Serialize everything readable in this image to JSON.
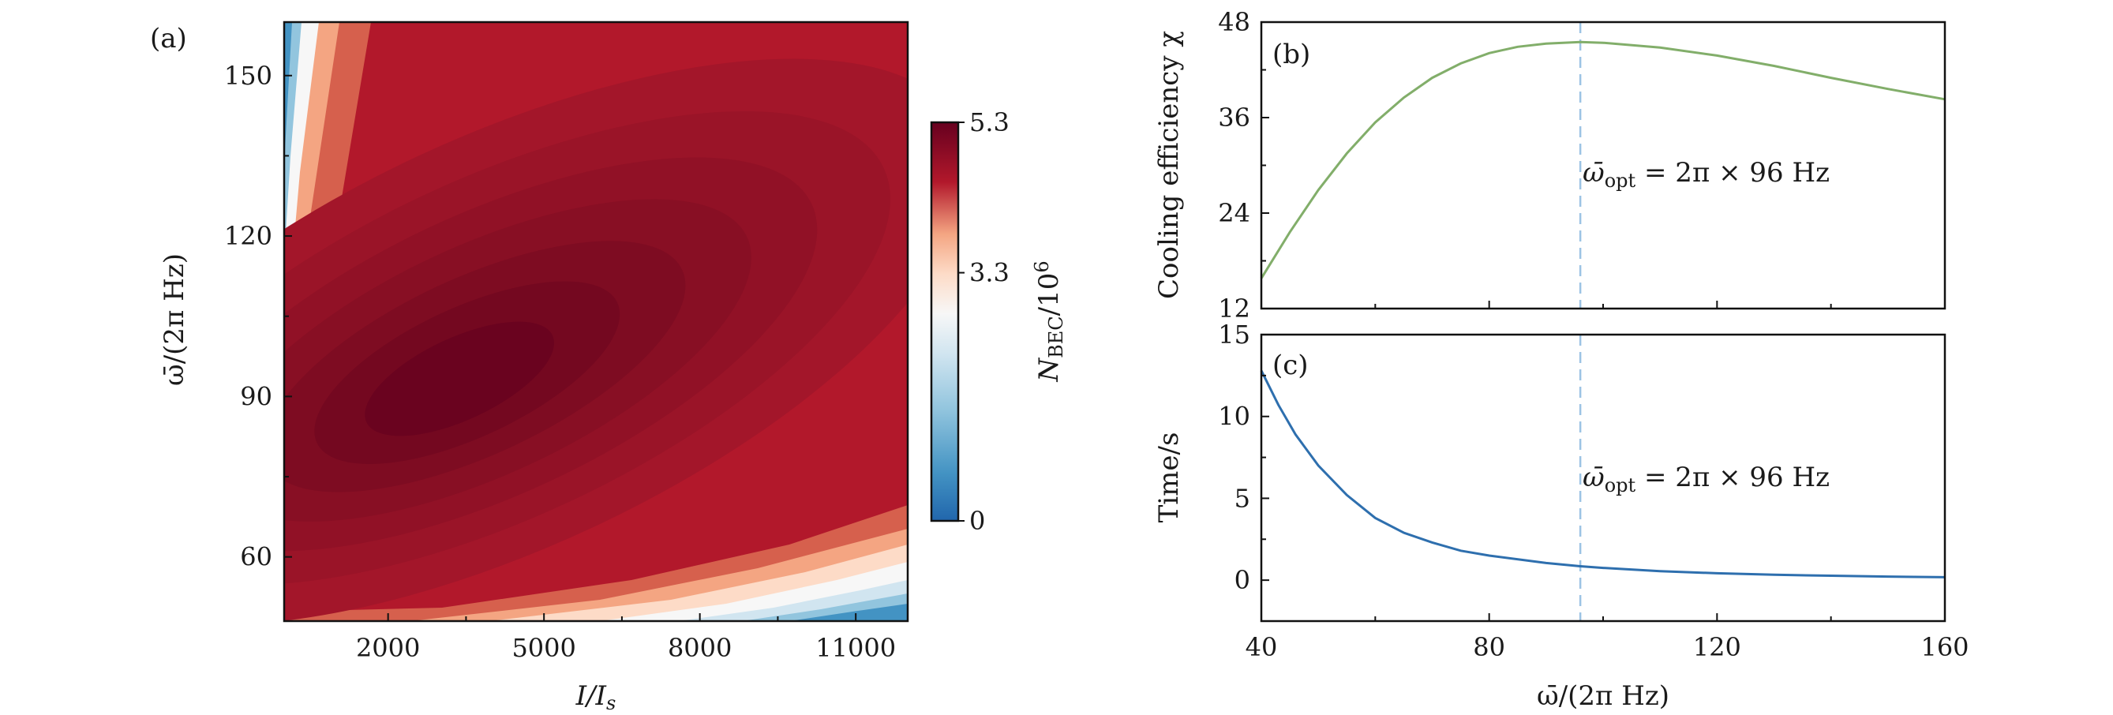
{
  "colors": {
    "heat_dark": "#67001f",
    "heat_red": "#b2182b",
    "heat_light_red": "#d6604d",
    "heat_peach": "#f4a582",
    "heat_pale": "#fddbc7",
    "heat_white": "#f7f7f7",
    "heat_pale_blue": "#d1e5f0",
    "heat_light_blue": "#92c5de",
    "heat_blue": "#4393c3",
    "heat_dark_blue": "#2166ac",
    "line_green": "#82ae6a",
    "line_blue": "#2e6fae",
    "dashed_line": "#9cc3e4"
  },
  "chart_data": [
    {
      "panel": "(a)",
      "type": "heatmap",
      "xlabel": "I/I",
      "xlabel_sub": "s",
      "ylabel": "ω̄/(2π Hz)",
      "xlim": [
        0,
        12000
      ],
      "ylim": [
        48,
        160
      ],
      "xticks": [
        2000,
        5000,
        8000,
        11000
      ],
      "xtick_labels": [
        "2000",
        "5000",
        "8000",
        "11000"
      ],
      "yticks": [
        60,
        90,
        120,
        150
      ],
      "ytick_labels": [
        "60",
        "90",
        "120",
        "150"
      ],
      "peak": {
        "x": 2800,
        "y": 92,
        "value": 5.3
      },
      "colorbar": {
        "label": "N",
        "label_sub": "BEC",
        "label_suffix": "/10",
        "label_sup": "6",
        "min": 0,
        "max": 5.3,
        "ticks": [
          0,
          3.3,
          5.3
        ],
        "tick_labels": [
          "0",
          "3.3",
          "5.3"
        ]
      }
    },
    {
      "panel": "(b)",
      "type": "line",
      "ylabel": "Cooling efficiency χ",
      "xlim": [
        40,
        160
      ],
      "ylim": [
        12,
        48
      ],
      "yticks": [
        12,
        24,
        36,
        48
      ],
      "ytick_labels": [
        "12",
        "24",
        "36",
        "48"
      ],
      "x": [
        40,
        45,
        50,
        55,
        60,
        65,
        70,
        75,
        80,
        85,
        90,
        96,
        100,
        110,
        120,
        130,
        140,
        150,
        160
      ],
      "series": [
        {
          "name": "Cooling efficiency",
          "values": [
            15.8,
            21.6,
            26.9,
            31.5,
            35.4,
            38.5,
            41.0,
            42.8,
            44.1,
            44.9,
            45.3,
            45.5,
            45.4,
            44.8,
            43.8,
            42.5,
            41.0,
            39.6,
            38.3
          ]
        }
      ],
      "vline_x": 96,
      "annotation": "ω̄",
      "annotation_sub": "opt",
      "annotation_rest": " = 2π × 96 Hz"
    },
    {
      "panel": "(c)",
      "type": "line",
      "ylabel": "Time/s",
      "xlabel": "ω̄/(2π Hz)",
      "xlim": [
        40,
        160
      ],
      "ylim": [
        -2.5,
        15
      ],
      "xticks": [
        40,
        80,
        120,
        160
      ],
      "xtick_labels": [
        "40",
        "80",
        "120",
        "160"
      ],
      "yticks": [
        0,
        5,
        10,
        15
      ],
      "ytick_labels": [
        "0",
        "5",
        "10",
        "15"
      ],
      "x": [
        40,
        43,
        46,
        50,
        55,
        60,
        65,
        70,
        75,
        80,
        90,
        96,
        100,
        110,
        120,
        130,
        140,
        150,
        160
      ],
      "series": [
        {
          "name": "Time",
          "values": [
            12.8,
            10.7,
            8.9,
            7.0,
            5.2,
            3.8,
            2.9,
            2.3,
            1.8,
            1.5,
            1.05,
            0.85,
            0.75,
            0.55,
            0.42,
            0.33,
            0.27,
            0.22,
            0.18
          ]
        }
      ],
      "vline_x": 96,
      "annotation": "ω̄",
      "annotation_sub": "opt",
      "annotation_rest": " = 2π × 96 Hz"
    }
  ]
}
